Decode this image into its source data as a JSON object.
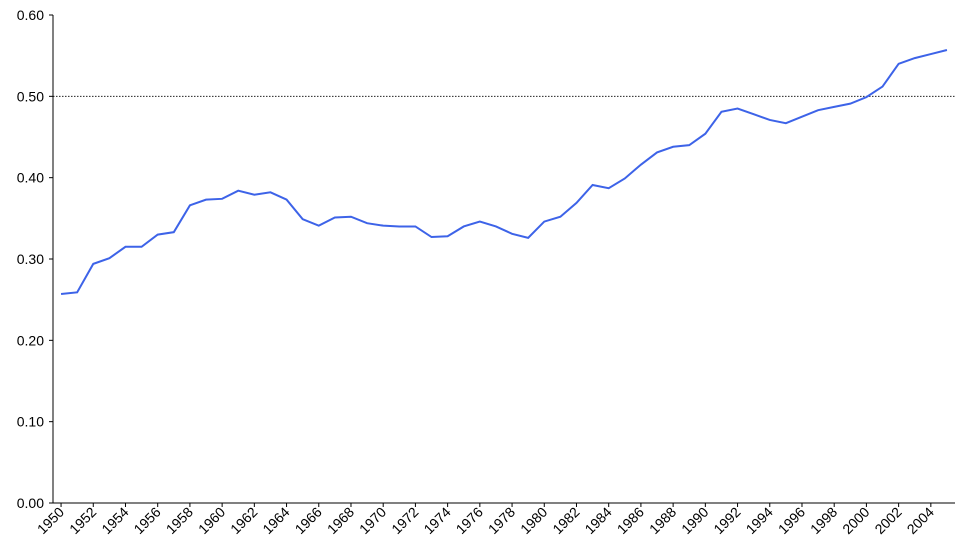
{
  "chart_data": {
    "type": "line",
    "x": [
      1950,
      1951,
      1952,
      1953,
      1954,
      1955,
      1956,
      1957,
      1958,
      1959,
      1960,
      1961,
      1962,
      1963,
      1964,
      1965,
      1966,
      1967,
      1968,
      1969,
      1970,
      1971,
      1972,
      1973,
      1974,
      1975,
      1976,
      1977,
      1978,
      1979,
      1980,
      1981,
      1982,
      1983,
      1984,
      1985,
      1986,
      1987,
      1988,
      1989,
      1990,
      1991,
      1992,
      1993,
      1994,
      1995,
      1996,
      1997,
      1998,
      1999,
      2000,
      2001,
      2002,
      2003,
      2004,
      2005
    ],
    "values": [
      0.257,
      0.259,
      0.294,
      0.301,
      0.315,
      0.315,
      0.33,
      0.333,
      0.366,
      0.373,
      0.374,
      0.384,
      0.379,
      0.382,
      0.373,
      0.349,
      0.341,
      0.351,
      0.352,
      0.344,
      0.341,
      0.34,
      0.34,
      0.327,
      0.328,
      0.34,
      0.346,
      0.34,
      0.331,
      0.326,
      0.346,
      0.352,
      0.369,
      0.391,
      0.387,
      0.399,
      0.416,
      0.431,
      0.438,
      0.44,
      0.454,
      0.481,
      0.485,
      0.478,
      0.471,
      0.467,
      0.475,
      0.483,
      0.487,
      0.491,
      0.499,
      0.512,
      0.54,
      0.547,
      0.552,
      0.557
    ],
    "color": "#3d63e8",
    "xlim": [
      1949.5,
      2005.5
    ],
    "xticks": [
      1950,
      1952,
      1954,
      1956,
      1958,
      1960,
      1962,
      1964,
      1966,
      1968,
      1970,
      1972,
      1974,
      1976,
      1978,
      1980,
      1982,
      1984,
      1986,
      1988,
      1990,
      1992,
      1994,
      1996,
      1998,
      2000,
      2002,
      2004
    ],
    "ylim": [
      0,
      0.6
    ],
    "yticks": [
      {
        "value": 0,
        "label": "0.00"
      },
      {
        "value": 0.1,
        "label": "0.10"
      },
      {
        "value": 0.2,
        "label": "0.20"
      },
      {
        "value": 0.3,
        "label": "0.30"
      },
      {
        "value": 0.4,
        "label": "0.40"
      },
      {
        "value": 0.5,
        "label": "0.50"
      },
      {
        "value": 0.6,
        "label": "0.60"
      }
    ],
    "reference_line": 0.5
  }
}
